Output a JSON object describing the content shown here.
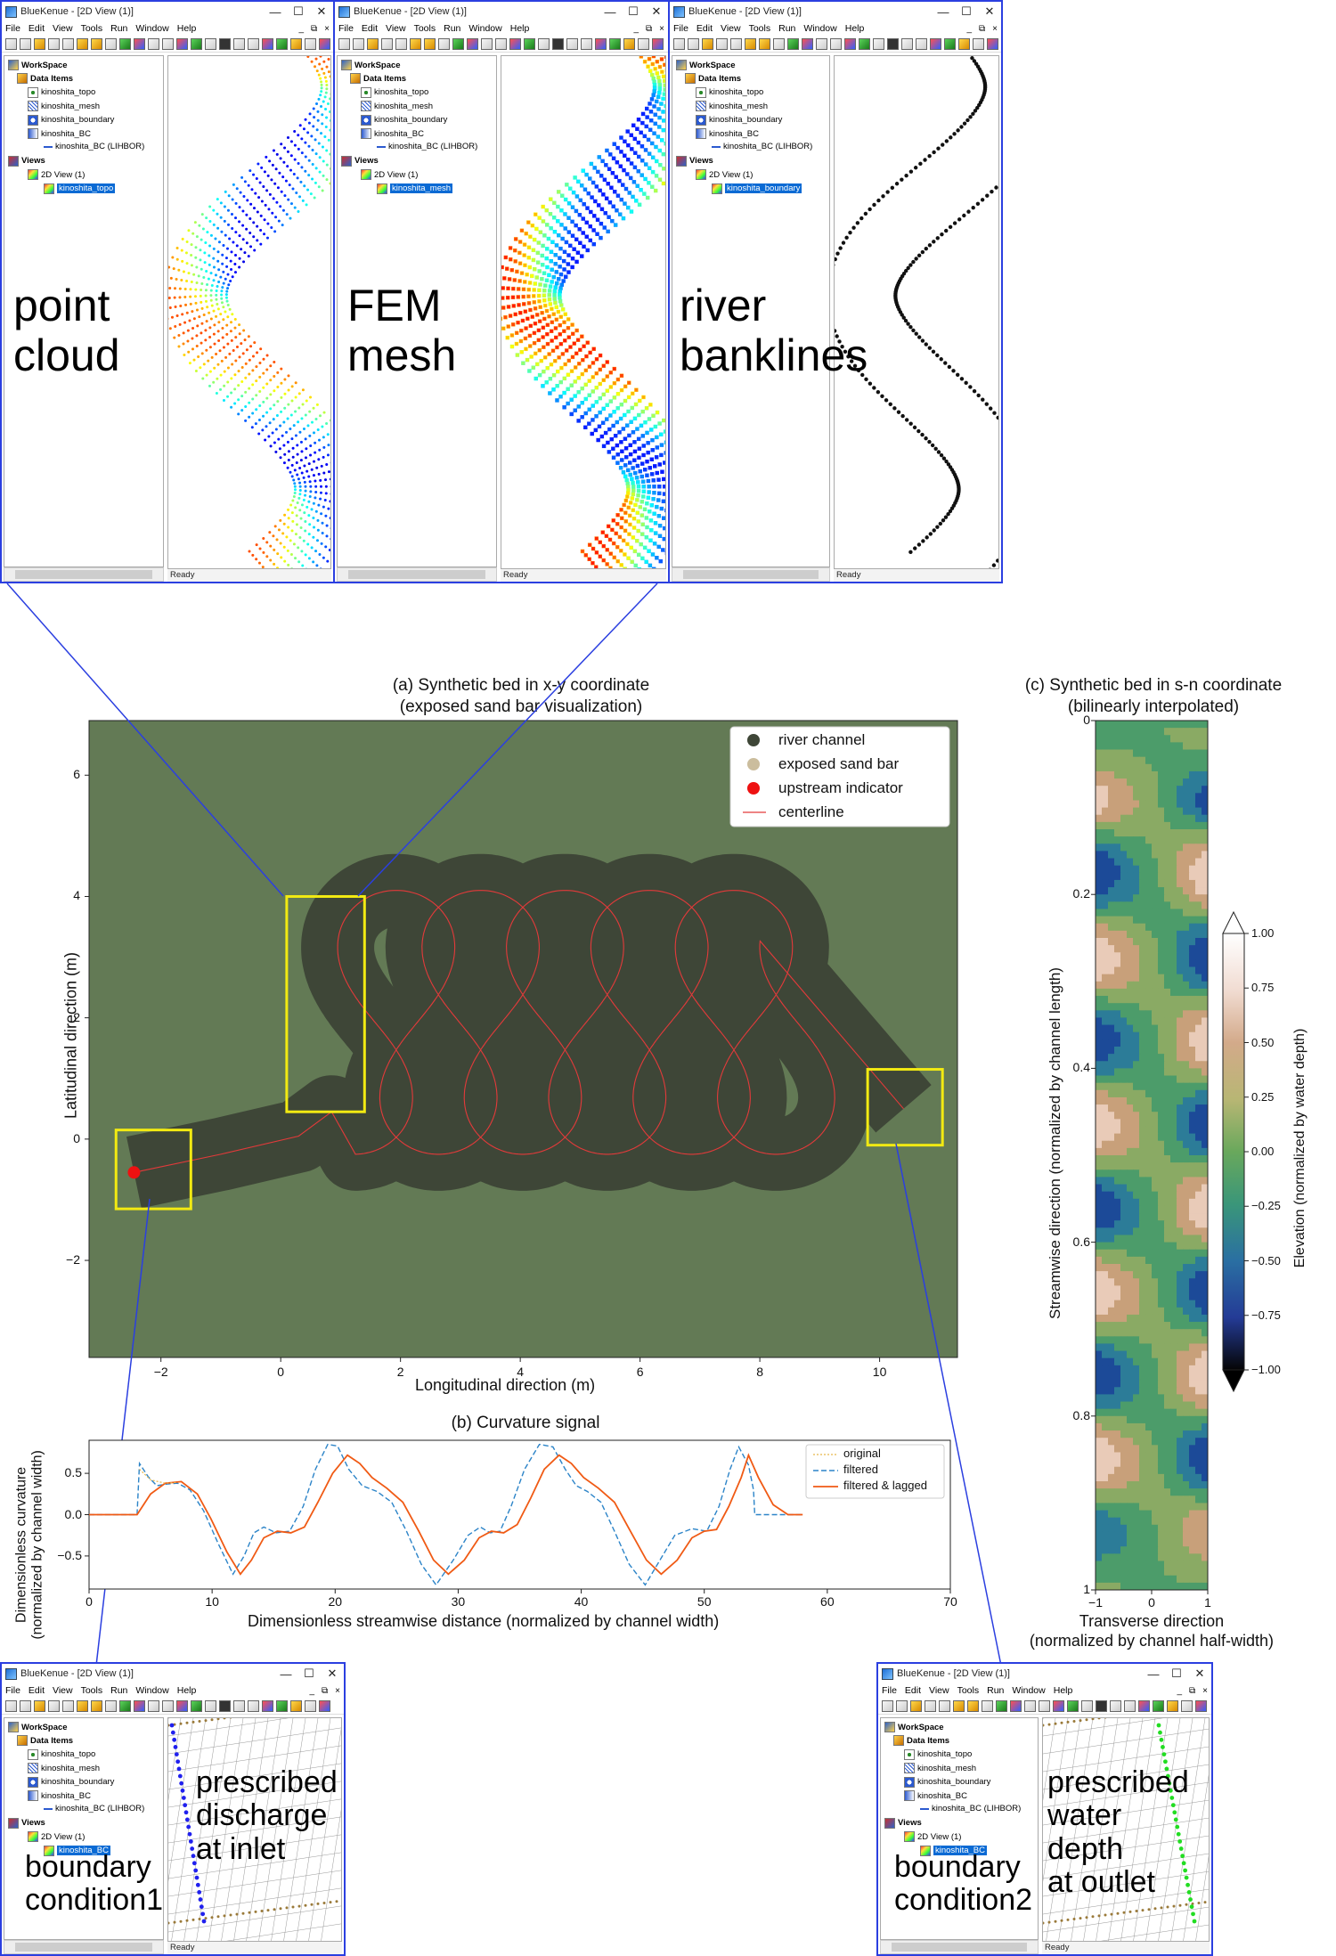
{
  "app": {
    "title": "BlueKenue - [2D View (1)]",
    "menu": [
      "File",
      "Edit",
      "View",
      "Tools",
      "Run",
      "Window",
      "Help"
    ],
    "window_buttons": [
      "—",
      "☐",
      "✕"
    ],
    "mdi_buttons": [
      "_",
      "⧉",
      "×"
    ],
    "status": "Ready"
  },
  "tree": {
    "workspace": "WorkSpace",
    "data_items": "Data Items",
    "topo": "kinoshita_topo",
    "mesh": "kinoshita_mesh",
    "boundary": "kinoshita_boundary",
    "bc": "kinoshita_BC",
    "lihbor": "kinoshita_BC (LIHBOR)",
    "views": "Views",
    "view2d": "2D View (1)"
  },
  "windows": [
    {
      "selected": "kinoshita_topo",
      "label": "point\ncloud"
    },
    {
      "selected": "kinoshita_mesh",
      "label": "FEM\nmesh"
    },
    {
      "selected": "kinoshita_boundary",
      "label": "river\nbanklines"
    },
    {
      "selected": "kinoshita_BC",
      "label": "boundary\ncondition1",
      "overlay": "prescribed\ndischarge\nat inlet"
    },
    {
      "selected": "kinoshita_BC",
      "label": "boundary\ncondition2",
      "overlay": "prescribed\nwater\ndepth\nat outlet"
    }
  ],
  "chart_a": {
    "title": "(a) Synthetic bed in x-y coordinate\n(exposed sand bar visualization)",
    "xlabel": "Longitudinal direction (m)",
    "ylabel": "Latitudinal direction (m)",
    "xticks": [
      "−2",
      "0",
      "2",
      "4",
      "6",
      "8",
      "10"
    ],
    "yticks": [
      "6",
      "4",
      "2",
      "0",
      "−2"
    ],
    "legend": [
      "river channel",
      "exposed sand bar",
      "upstream indicator",
      "centerline"
    ],
    "colors": {
      "bg": "#637a55",
      "channel": "#3e4637",
      "bar": "#cbbd9d",
      "upstream": "#ee1111",
      "centerline": "#e33a3a",
      "highlight": "#f2ea12"
    }
  },
  "chart_b": {
    "title": "(b) Curvature signal",
    "xlabel": "Dimensionless streamwise distance (normalized by channel width)",
    "ylabel": "Dimensionless curvature\n(normalized by channel width)",
    "xticks": [
      "0",
      "10",
      "20",
      "30",
      "40",
      "50",
      "60",
      "70"
    ],
    "yticks": [
      "0.5",
      "0.0",
      "−0.5"
    ],
    "legend": [
      "original",
      "filtered",
      "filtered & lagged"
    ]
  },
  "chart_c": {
    "title": "(c) Synthetic bed in s-n coordinate\n(bilinearly interpolated)",
    "xlabel": "Transverse direction\n(normalized by channel half-width)",
    "ylabel": "Streamwise direction (normalized by channel length)",
    "xticks": [
      "−1",
      "0",
      "1"
    ],
    "yticks": [
      "0",
      "0.2",
      "0.4",
      "0.6",
      "0.8",
      "1"
    ],
    "cbar_label": "Elevation (normalized by water depth)",
    "cbar_ticks": [
      "1.00",
      "0.75",
      "0.50",
      "0.25",
      "0.00",
      "−0.25",
      "−0.50",
      "−0.75",
      "−1.00"
    ]
  },
  "chart_data": [
    {
      "type": "line",
      "title": "(b) Curvature signal",
      "xlabel": "Dimensionless streamwise distance (normalized by channel width)",
      "ylabel": "Dimensionless curvature (normalized by channel width)",
      "xlim": [
        0,
        70
      ],
      "ylim": [
        -0.9,
        0.9
      ],
      "legend_position": "top-right",
      "series": [
        {
          "name": "filtered",
          "x": [
            0,
            3.9,
            4.1,
            4.8,
            5.5,
            6.3,
            7.2,
            8.2,
            9.3,
            10.5,
            11.7,
            12.6,
            13.4,
            14.2,
            15.2,
            16.3,
            17.4,
            18.4,
            19.4,
            20.2,
            21.1,
            22.2,
            23.4,
            24.6,
            25.8,
            27.0,
            28.2,
            29.6,
            30.8,
            31.8,
            32.6,
            33.4,
            34.3,
            35.4,
            36.6,
            37.7,
            38.7,
            39.6,
            40.5,
            41.6,
            42.7,
            43.9,
            45.2,
            46.4,
            47.6,
            49.0,
            50.2,
            51.2,
            52.1,
            52.8,
            53.6,
            54.0,
            54.1,
            58.0
          ],
          "y": [
            0,
            0,
            0.62,
            0.46,
            0.35,
            0.37,
            0.38,
            0.3,
            0.05,
            -0.35,
            -0.72,
            -0.5,
            -0.22,
            -0.15,
            -0.22,
            -0.2,
            0.1,
            0.55,
            0.85,
            0.83,
            0.55,
            0.35,
            0.28,
            0.15,
            -0.2,
            -0.6,
            -0.85,
            -0.55,
            -0.25,
            -0.15,
            -0.22,
            -0.2,
            0.1,
            0.55,
            0.85,
            0.82,
            0.55,
            0.35,
            0.28,
            0.15,
            -0.2,
            -0.6,
            -0.85,
            -0.55,
            -0.25,
            -0.17,
            -0.2,
            0.1,
            0.55,
            0.82,
            0.6,
            0.3,
            0,
            0
          ]
        },
        {
          "name": "filtered & lagged",
          "x": [
            0,
            3.9,
            5.0,
            6.2,
            7.5,
            8.8,
            9.9,
            11.2,
            12.3,
            13.2,
            14.2,
            15.3,
            16.4,
            17.5,
            18.6,
            19.8,
            21.0,
            22.0,
            23.0,
            24.2,
            25.5,
            26.8,
            28.0,
            29.2,
            30.5,
            31.7,
            32.7,
            33.7,
            34.8,
            35.9,
            37.0,
            38.2,
            39.2,
            40.2,
            41.4,
            42.7,
            44.0,
            45.3,
            46.5,
            47.8,
            49.0,
            50.0,
            51.0,
            52.0,
            53.0,
            53.6,
            54.4,
            55.6,
            56.8,
            58.0
          ],
          "y": [
            0,
            0,
            0.25,
            0.38,
            0.4,
            0.25,
            -0.05,
            -0.45,
            -0.72,
            -0.55,
            -0.28,
            -0.2,
            -0.22,
            -0.15,
            0.15,
            0.5,
            0.72,
            0.62,
            0.45,
            0.32,
            0.15,
            -0.2,
            -0.55,
            -0.72,
            -0.55,
            -0.28,
            -0.2,
            -0.22,
            -0.12,
            0.2,
            0.55,
            0.72,
            0.62,
            0.45,
            0.32,
            0.15,
            -0.2,
            -0.55,
            -0.72,
            -0.55,
            -0.28,
            -0.2,
            -0.18,
            0.1,
            0.45,
            0.72,
            0.45,
            0.12,
            0,
            0
          ]
        },
        {
          "name": "original",
          "x": [
            4.1,
            5.0,
            6.2,
            7.2
          ],
          "y": [
            0.55,
            0.42,
            0.38,
            0.39
          ]
        }
      ]
    }
  ]
}
